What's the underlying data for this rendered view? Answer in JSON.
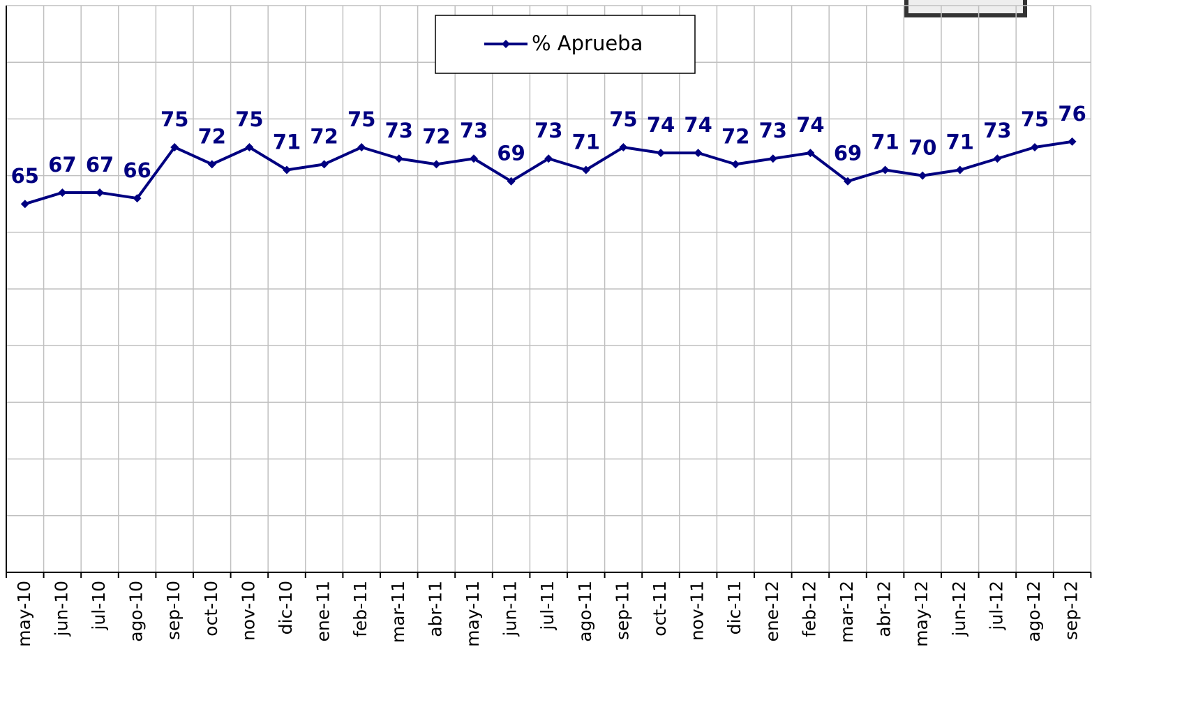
{
  "chart_data": {
    "type": "line",
    "categories": [
      "may-10",
      "jun-10",
      "jul-10",
      "ago-10",
      "sep-10",
      "oct-10",
      "nov-10",
      "dic-10",
      "ene-11",
      "feb-11",
      "mar-11",
      "abr-11",
      "may-11",
      "jun-11",
      "jul-11",
      "ago-11",
      "sep-11",
      "oct-11",
      "nov-11",
      "dic-11",
      "ene-12",
      "feb-12",
      "mar-12",
      "abr-12",
      "may-12",
      "jun-12",
      "jul-12",
      "ago-12",
      "sep-12"
    ],
    "series": [
      {
        "name": "% Aprueba",
        "color": "#000080",
        "values": [
          65,
          67,
          67,
          66,
          75,
          72,
          75,
          71,
          72,
          75,
          73,
          72,
          73,
          69,
          73,
          71,
          75,
          74,
          74,
          72,
          73,
          74,
          69,
          71,
          70,
          71,
          73,
          75,
          76
        ]
      }
    ],
    "ylim": [
      0,
      100
    ],
    "yticks": [
      0,
      10,
      20,
      30,
      40,
      50,
      60,
      70,
      80,
      90,
      100
    ],
    "grid": true
  }
}
